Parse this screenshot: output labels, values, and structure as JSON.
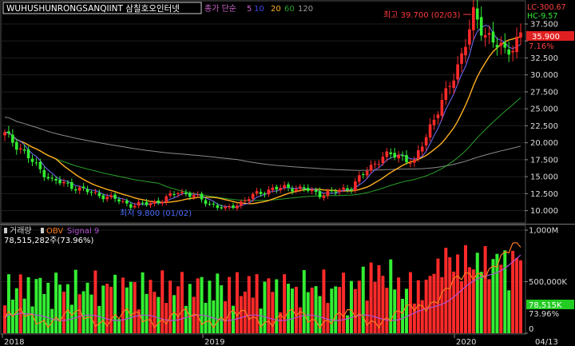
{
  "chart_data": [
    {
      "type": "candlestick",
      "title": "WUHUSHUNRONGSANQIINT  삼칠호오인터넷",
      "legend": {
        "prefix": "종가 단순",
        "periods": [
          "5",
          "10",
          "20",
          "60",
          "120"
        ]
      },
      "y_ticks": [
        10.0,
        12.5,
        15.0,
        17.5,
        20.0,
        22.5,
        25.0,
        27.5,
        30.0,
        32.5,
        35.0,
        37.5
      ],
      "y_tick_labels": [
        "10.000",
        "12.500",
        "15.000",
        "17.500",
        "20.000",
        "22.500",
        "25.000",
        "27.500",
        "30.000",
        "32.500",
        "",
        "37.500"
      ],
      "ylim": [
        8.3,
        40.8
      ],
      "x_labels": [
        "2018",
        "2019",
        "2020",
        "04/13"
      ],
      "current_price": "35.900",
      "change_pct": "7.16%",
      "lc_label": "LC-300.67",
      "hc_label": "HC-9.57",
      "high_annotation": "최고 39.700 (02/03)",
      "low_annotation": "최저 9.800 (01/02)",
      "colors": {
        "up": "#ff2a2a",
        "down": "#33ee33",
        "ma5": "#7070ff",
        "ma10": "#7070ff",
        "ma20": "#ffb020",
        "ma60": "#2aa02a",
        "ma120": "#8a8a8a"
      }
    },
    {
      "type": "bar",
      "title": "거래량",
      "legend": [
        "OBV",
        "Signal 9"
      ],
      "volume_label": "78,515,282주(73.96%)",
      "y_ticks": [
        0,
        500000,
        1000000
      ],
      "y_tick_labels": [
        "0",
        "500,000K",
        "1,000M"
      ],
      "ylim": [
        0,
        1000000
      ],
      "current_label": "78,515K",
      "current_pct": "73.96%",
      "colors": {
        "up": "#ff2a2a",
        "down": "#33ee33",
        "obv": "#ff7a20",
        "signal": "#b050d0"
      }
    }
  ]
}
